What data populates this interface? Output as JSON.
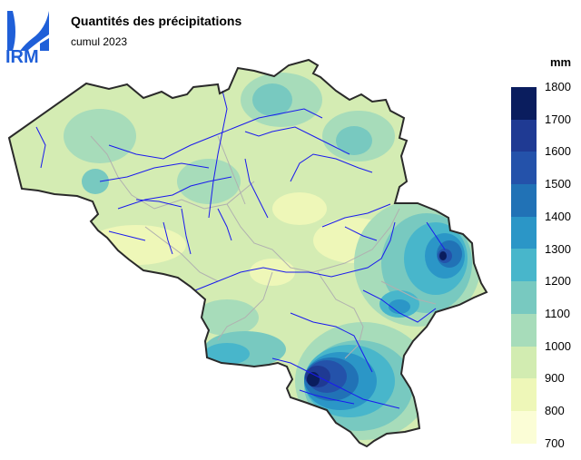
{
  "header": {
    "title": "Quantités des précipitations",
    "subtitle": "cumul 2023",
    "logo_text": "IRM"
  },
  "legend": {
    "unit": "mm",
    "ticks": [
      "1800",
      "1700",
      "1600",
      "1500",
      "1400",
      "1300",
      "1200",
      "1100",
      "1000",
      "900",
      "800",
      "700"
    ],
    "colors": [
      "#0a1d5e",
      "#1f3a93",
      "#2452aa",
      "#2172b6",
      "#2b96c7",
      "#48b6cb",
      "#78c9c0",
      "#a7dcba",
      "#d2ecb1",
      "#eef7b8",
      "#fbfdd6"
    ]
  },
  "map": {
    "region": "Belgium",
    "colors": {
      "border": "#2a2a2a",
      "rivers": "#1a1aee",
      "provinces": "#b0b0b0",
      "logo": "#1f5fd8"
    }
  }
}
